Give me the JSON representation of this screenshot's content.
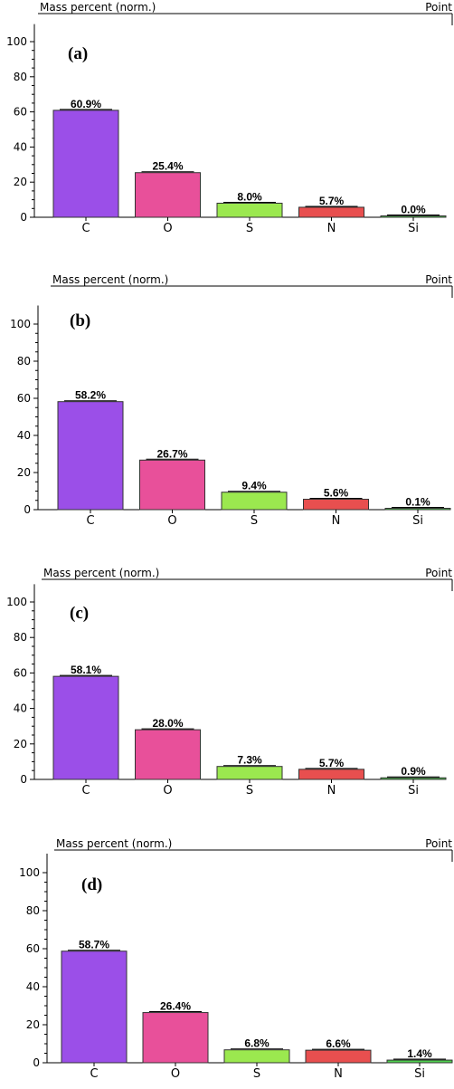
{
  "chart_data": [
    {
      "type": "bar",
      "panel": "(a)",
      "header_left": "Mass percent (norm.)",
      "header_right": "Point",
      "categories": [
        "C",
        "O",
        "S",
        "N",
        "Si"
      ],
      "values": [
        60.9,
        25.4,
        8.0,
        5.7,
        0.0
      ],
      "value_labels": [
        "60.9%",
        "25.4%",
        "8.0%",
        "5.7%",
        "0.0%"
      ],
      "bar_colors": [
        "#9b4fe8",
        "#e8509a",
        "#9be84f",
        "#e84f4f",
        "#4fd04f"
      ],
      "yticks": [
        "0",
        "20",
        "40",
        "60",
        "80",
        "100"
      ],
      "ylim": [
        0,
        110
      ]
    },
    {
      "type": "bar",
      "panel": "(b)",
      "header_left": "Mass percent (norm.)",
      "header_right": "Point",
      "categories": [
        "C",
        "O",
        "S",
        "N",
        "Si"
      ],
      "values": [
        58.2,
        26.7,
        9.4,
        5.6,
        0.1
      ],
      "value_labels": [
        "58.2%",
        "26.7%",
        "9.4%",
        "5.6%",
        "0.1%"
      ],
      "bar_colors": [
        "#9b4fe8",
        "#e8509a",
        "#9be84f",
        "#e84f4f",
        "#4fd04f"
      ],
      "yticks": [
        "0",
        "20",
        "40",
        "60",
        "80",
        "100"
      ],
      "ylim": [
        0,
        110
      ]
    },
    {
      "type": "bar",
      "panel": "(c)",
      "header_left": "Mass percent (norm.)",
      "header_right": "Point",
      "categories": [
        "C",
        "O",
        "S",
        "N",
        "Si"
      ],
      "values": [
        58.1,
        28.0,
        7.3,
        5.7,
        0.9
      ],
      "value_labels": [
        "58.1%",
        "28.0%",
        "7.3%",
        "5.7%",
        "0.9%"
      ],
      "bar_colors": [
        "#9b4fe8",
        "#e8509a",
        "#9be84f",
        "#e84f4f",
        "#4fd04f"
      ],
      "yticks": [
        "0",
        "20",
        "40",
        "60",
        "80",
        "100"
      ],
      "ylim": [
        0,
        110
      ]
    },
    {
      "type": "bar",
      "panel": "(d)",
      "header_left": "Mass percent (norm.)",
      "header_right": "Point",
      "categories": [
        "C",
        "O",
        "S",
        "N",
        "Si"
      ],
      "values": [
        58.7,
        26.4,
        6.8,
        6.6,
        1.4
      ],
      "value_labels": [
        "58.7%",
        "26.4%",
        "6.8%",
        "6.6%",
        "1.4%"
      ],
      "bar_colors": [
        "#9b4fe8",
        "#e8509a",
        "#9be84f",
        "#e84f4f",
        "#4fd04f"
      ],
      "yticks": [
        "0",
        "20",
        "40",
        "60",
        "80",
        "100"
      ],
      "ylim": [
        0,
        110
      ]
    }
  ]
}
